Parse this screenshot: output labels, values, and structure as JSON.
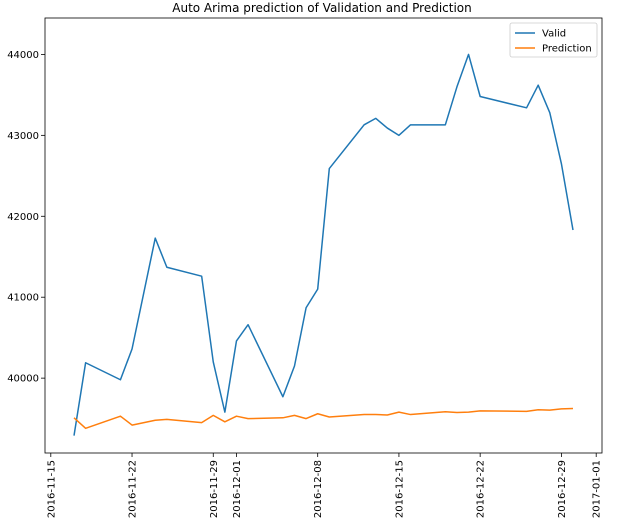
{
  "chart_data": {
    "type": "line",
    "title": "Auto Arima prediction of Validation and Prediction",
    "xlabel": "",
    "ylabel": "",
    "x_axis": "date",
    "xlim": [
      "2016-11-14T12:00",
      "2017-01-01T12:00"
    ],
    "ylim": [
      39075,
      44450
    ],
    "x_ticks": [
      "2016-11-15",
      "2016-11-22",
      "2016-11-29",
      "2016-12-01",
      "2016-12-08",
      "2016-12-15",
      "2016-12-22",
      "2016-12-29",
      "2017-01-01"
    ],
    "y_ticks": [
      40000,
      41000,
      42000,
      43000,
      44000
    ],
    "grid": false,
    "legend_position": "top-right",
    "series": [
      {
        "name": "Valid",
        "color": "#1f77b4",
        "points": [
          [
            "2016-11-17",
            39290
          ],
          [
            "2016-11-18",
            40190
          ],
          [
            "2016-11-21",
            39980
          ],
          [
            "2016-11-22",
            40360
          ],
          [
            "2016-11-24",
            41730
          ],
          [
            "2016-11-25",
            41370
          ],
          [
            "2016-11-28",
            41260
          ],
          [
            "2016-11-29",
            40200
          ],
          [
            "2016-11-30",
            39580
          ],
          [
            "2016-12-01",
            40460
          ],
          [
            "2016-12-02",
            40660
          ],
          [
            "2016-12-05",
            39770
          ],
          [
            "2016-12-06",
            40150
          ],
          [
            "2016-12-07",
            40870
          ],
          [
            "2016-12-08",
            41100
          ],
          [
            "2016-12-09",
            42590
          ],
          [
            "2016-12-12",
            43130
          ],
          [
            "2016-12-13",
            43210
          ],
          [
            "2016-12-14",
            43090
          ],
          [
            "2016-12-15",
            43000
          ],
          [
            "2016-12-16",
            43130
          ],
          [
            "2016-12-19",
            43130
          ],
          [
            "2016-12-20",
            43600
          ],
          [
            "2016-12-21",
            44000
          ],
          [
            "2016-12-22",
            43480
          ],
          [
            "2016-12-26",
            43340
          ],
          [
            "2016-12-27",
            43620
          ],
          [
            "2016-12-28",
            43280
          ],
          [
            "2016-12-29",
            42650
          ],
          [
            "2016-12-30",
            41830
          ]
        ]
      },
      {
        "name": "Prediction",
        "color": "#ff7f0e",
        "points": [
          [
            "2016-11-17",
            39510
          ],
          [
            "2016-11-18",
            39380
          ],
          [
            "2016-11-21",
            39530
          ],
          [
            "2016-11-22",
            39420
          ],
          [
            "2016-11-24",
            39480
          ],
          [
            "2016-11-25",
            39490
          ],
          [
            "2016-11-28",
            39450
          ],
          [
            "2016-11-29",
            39540
          ],
          [
            "2016-11-30",
            39460
          ],
          [
            "2016-12-01",
            39530
          ],
          [
            "2016-12-02",
            39500
          ],
          [
            "2016-12-05",
            39510
          ],
          [
            "2016-12-06",
            39540
          ],
          [
            "2016-12-07",
            39500
          ],
          [
            "2016-12-08",
            39560
          ],
          [
            "2016-12-09",
            39520
          ],
          [
            "2016-12-12",
            39550
          ],
          [
            "2016-12-13",
            39550
          ],
          [
            "2016-12-14",
            39545
          ],
          [
            "2016-12-15",
            39580
          ],
          [
            "2016-12-16",
            39550
          ],
          [
            "2016-12-19",
            39585
          ],
          [
            "2016-12-20",
            39575
          ],
          [
            "2016-12-21",
            39580
          ],
          [
            "2016-12-22",
            39595
          ],
          [
            "2016-12-26",
            39590
          ],
          [
            "2016-12-27",
            39610
          ],
          [
            "2016-12-28",
            39605
          ],
          [
            "2016-12-29",
            39620
          ],
          [
            "2016-12-30",
            39625
          ]
        ]
      }
    ]
  }
}
